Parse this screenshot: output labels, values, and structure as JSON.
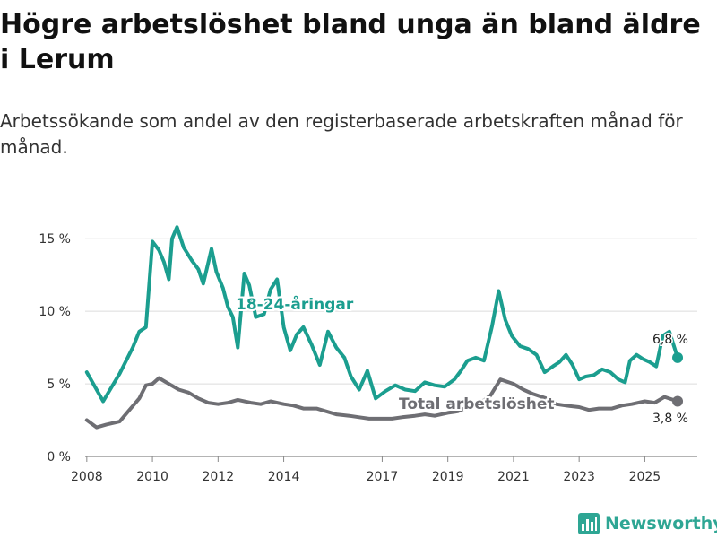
{
  "title": "Högre arbetslöshet bland unga än bland äldre i Lerum",
  "subtitle": "Arbetssökande som andel av den registerbaserade arbetskraften månad för månad.",
  "brand": "Newsworthy",
  "chart_data": {
    "type": "line",
    "title": "Högre arbetslöshet bland unga än bland äldre i Lerum",
    "subtitle": "Arbetssökande som andel av den registerbaserade arbetskraften månad för månad.",
    "xlabel": "",
    "ylabel": "",
    "xlim": [
      2007.95,
      2026.6
    ],
    "ylim": [
      0,
      16
    ],
    "x_ticks": [
      {
        "value": 2008,
        "label": "2008"
      },
      {
        "value": 2010,
        "label": "2010"
      },
      {
        "value": 2012,
        "label": "2012"
      },
      {
        "value": 2014,
        "label": "2014"
      },
      {
        "value": 2017,
        "label": "2017"
      },
      {
        "value": 2019,
        "label": "2019"
      },
      {
        "value": 2021,
        "label": "2021"
      },
      {
        "value": 2023,
        "label": "2023"
      },
      {
        "value": 2025,
        "label": "2025"
      }
    ],
    "y_ticks": [
      {
        "value": 0,
        "label": "0 %"
      },
      {
        "value": 5,
        "label": "5 %"
      },
      {
        "value": 10,
        "label": "10 %"
      },
      {
        "value": 15,
        "label": "15 %"
      }
    ],
    "series": [
      {
        "name": "18-24-åringar",
        "color": "#1b9e8f",
        "end_label": "6,8 %",
        "x": [
          2008.0,
          2008.5,
          2009.0,
          2009.4,
          2009.6,
          2009.8,
          2010.0,
          2010.2,
          2010.35,
          2010.5,
          2010.6,
          2010.75,
          2010.95,
          2011.2,
          2011.4,
          2011.55,
          2011.8,
          2011.95,
          2012.15,
          2012.3,
          2012.45,
          2012.6,
          2012.8,
          2012.95,
          2013.15,
          2013.4,
          2013.6,
          2013.8,
          2014.0,
          2014.2,
          2014.4,
          2014.6,
          2014.85,
          2015.1,
          2015.35,
          2015.6,
          2015.85,
          2016.05,
          2016.3,
          2016.55,
          2016.8,
          2017.1,
          2017.4,
          2017.7,
          2018.0,
          2018.3,
          2018.6,
          2018.9,
          2019.2,
          2019.4,
          2019.6,
          2019.85,
          2020.1,
          2020.35,
          2020.55,
          2020.75,
          2020.95,
          2021.2,
          2021.45,
          2021.7,
          2021.95,
          2022.2,
          2022.4,
          2022.6,
          2022.8,
          2023.0,
          2023.2,
          2023.45,
          2023.7,
          2023.95,
          2024.2,
          2024.4,
          2024.55,
          2024.75,
          2024.95,
          2025.15,
          2025.35,
          2025.55,
          2025.75,
          2026.0
        ],
        "values": [
          5.8,
          3.8,
          5.7,
          7.5,
          8.6,
          8.9,
          14.8,
          14.2,
          13.4,
          12.2,
          15.0,
          15.8,
          14.4,
          13.5,
          12.9,
          11.9,
          14.3,
          12.7,
          11.6,
          10.3,
          9.6,
          7.5,
          12.6,
          11.8,
          9.6,
          9.8,
          11.5,
          12.2,
          8.9,
          7.3,
          8.4,
          8.9,
          7.7,
          6.3,
          8.6,
          7.5,
          6.8,
          5.5,
          4.6,
          5.9,
          4.0,
          4.5,
          4.9,
          4.6,
          4.5,
          5.1,
          4.9,
          4.8,
          5.3,
          5.9,
          6.6,
          6.8,
          6.6,
          9.0,
          11.4,
          9.4,
          8.3,
          7.6,
          7.4,
          7.0,
          5.8,
          6.2,
          6.5,
          7.0,
          6.3,
          5.3,
          5.5,
          5.6,
          6.0,
          5.8,
          5.3,
          5.1,
          6.6,
          7.0,
          6.7,
          6.5,
          6.2,
          8.3,
          8.6,
          6.8
        ]
      },
      {
        "name": "Total arbetslöshet",
        "color": "#6e6e73",
        "end_label": "3,8 %",
        "x": [
          2008.0,
          2008.3,
          2008.6,
          2009.0,
          2009.3,
          2009.6,
          2009.8,
          2010.0,
          2010.2,
          2010.5,
          2010.8,
          2011.1,
          2011.4,
          2011.7,
          2012.0,
          2012.3,
          2012.6,
          2013.0,
          2013.3,
          2013.6,
          2014.0,
          2014.3,
          2014.6,
          2015.0,
          2015.3,
          2015.6,
          2016.0,
          2016.3,
          2016.6,
          2017.0,
          2017.3,
          2017.6,
          2018.0,
          2018.3,
          2018.6,
          2019.0,
          2019.3,
          2019.6,
          2020.0,
          2020.3,
          2020.6,
          2021.0,
          2021.3,
          2021.6,
          2022.0,
          2022.3,
          2022.6,
          2023.0,
          2023.3,
          2023.6,
          2024.0,
          2024.3,
          2024.6,
          2025.0,
          2025.3,
          2025.6,
          2026.0
        ],
        "values": [
          2.5,
          2.0,
          2.2,
          2.4,
          3.2,
          4.0,
          4.9,
          5.0,
          5.4,
          5.0,
          4.6,
          4.4,
          4.0,
          3.7,
          3.6,
          3.7,
          3.9,
          3.7,
          3.6,
          3.8,
          3.6,
          3.5,
          3.3,
          3.3,
          3.1,
          2.9,
          2.8,
          2.7,
          2.6,
          2.6,
          2.6,
          2.7,
          2.8,
          2.9,
          2.8,
          3.0,
          3.1,
          3.4,
          3.7,
          4.2,
          5.3,
          5.0,
          4.6,
          4.3,
          4.0,
          3.6,
          3.5,
          3.4,
          3.2,
          3.3,
          3.3,
          3.5,
          3.6,
          3.8,
          3.7,
          4.1,
          3.8
        ]
      }
    ]
  }
}
